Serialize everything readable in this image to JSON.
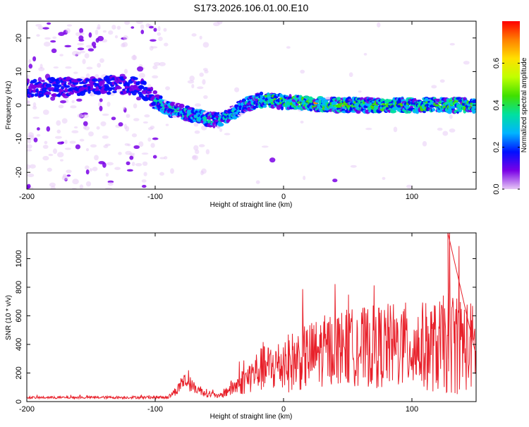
{
  "title": "S173.2026.106.01.00.E10",
  "chart_data": [
    {
      "type": "heatmap",
      "name": "spectrogram",
      "xlabel": "Height of straight line (km)",
      "ylabel": "Frequency (Hz)",
      "xlim": [
        -200,
        150
      ],
      "ylim": [
        -25,
        25
      ],
      "xticks": [
        -200,
        -100,
        0,
        100
      ],
      "yticks": [
        -20,
        -10,
        0,
        10,
        20
      ],
      "colorbar": {
        "label": "Normalized spectral amplitude",
        "range": [
          0.0,
          0.8
        ],
        "ticks": [
          0.0,
          0.2,
          0.4,
          0.6
        ],
        "colors": [
          "#e6c8f5",
          "#7a00e6",
          "#0010ff",
          "#00b4ff",
          "#00e0a0",
          "#40e000",
          "#c0ff00",
          "#ffe000",
          "#ff8000",
          "#ff0000"
        ]
      },
      "ridge": {
        "x": [
          -200,
          -170,
          -140,
          -120,
          -110,
          -100,
          -90,
          -80,
          -70,
          -60,
          -50,
          -40,
          -30,
          -20,
          -10,
          0,
          20,
          40,
          60,
          80,
          100,
          120,
          150
        ],
        "freq": [
          5,
          5.5,
          6,
          6,
          5,
          1.5,
          -1,
          -2,
          -3,
          -4,
          -4.5,
          -2.5,
          0,
          1.5,
          1.5,
          1,
          0.5,
          0,
          0,
          0,
          0,
          0,
          0
        ]
      }
    },
    {
      "type": "line",
      "name": "snr",
      "xlabel": "Height of straight line (km)",
      "ylabel": "SNR (10 * v/v)",
      "xlim": [
        -200,
        150
      ],
      "ylim": [
        0,
        1180
      ],
      "xticks": [
        -200,
        -100,
        0,
        100
      ],
      "yticks": [
        0,
        200,
        400,
        600,
        800,
        1000
      ],
      "color": "#e8202a",
      "envelope": {
        "x": [
          -200,
          -90,
          -82,
          -78,
          -70,
          -60,
          -50,
          -45,
          -30,
          -20,
          0,
          20,
          40,
          60,
          80,
          100,
          120,
          130,
          150
        ],
        "mean": [
          28,
          30,
          90,
          150,
          100,
          60,
          35,
          70,
          150,
          220,
          260,
          320,
          380,
          380,
          390,
          390,
          380,
          420,
          380
        ],
        "spread": [
          8,
          10,
          40,
          60,
          40,
          30,
          15,
          40,
          100,
          150,
          200,
          240,
          260,
          280,
          300,
          310,
          320,
          380,
          300
        ]
      }
    }
  ]
}
